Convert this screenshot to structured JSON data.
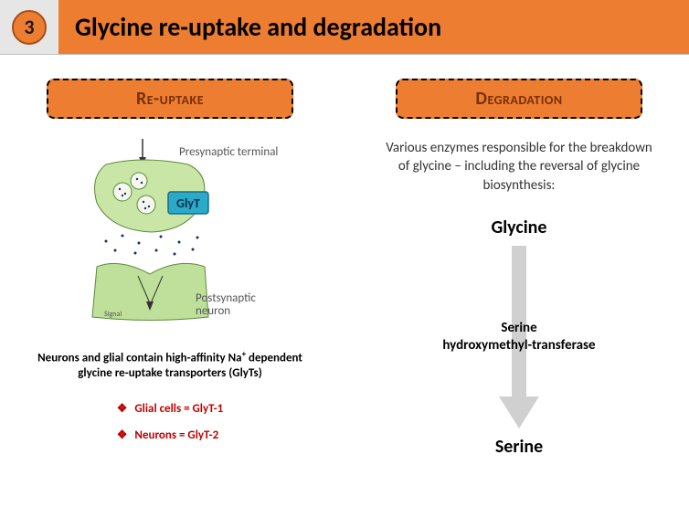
{
  "slide_number": "3",
  "title": "Glycine re-uptake and degradation",
  "accent_color": "#ed7d31",
  "badge_border": "#a64f17",
  "section_label_text_color": "#7a2e05",
  "left": {
    "heading": "Re-uptake",
    "diagram": {
      "label_presynaptic": "Presynaptic terminal",
      "label_postsynaptic": "Postsynaptic neuron",
      "label_signal": "Signal",
      "transporter_label": "GlyT",
      "presyn_fill": "#c9e6a7",
      "postsyn_fill": "#bfe09a",
      "shape_stroke": "#5a8a3a",
      "glyt_fill": "#2aa9c9",
      "glyt_stroke": "#1a6e85",
      "vesicle_fill": "#f4f8ef",
      "dot_color": "#1a2e6a"
    },
    "caption_html": "Neurons and glial contain high-affinity Na<sup>+</sup> dependent glycine re-uptake transporters (GlyTs)",
    "bullets": [
      "Glial cells = GlyT-1",
      "Neurons = GlyT-2"
    ],
    "bullet_color": "#c00000"
  },
  "right": {
    "heading": "Degradation",
    "intro": "Various enzymes responsible for the breakdown of glycine – including the reversal of glycine biosynthesis:",
    "pathway": {
      "from": "Glycine",
      "enzyme": "Serine hydroxymethyl-transferase",
      "to": "Serine",
      "arrow_color": "#d0d0d0"
    }
  }
}
